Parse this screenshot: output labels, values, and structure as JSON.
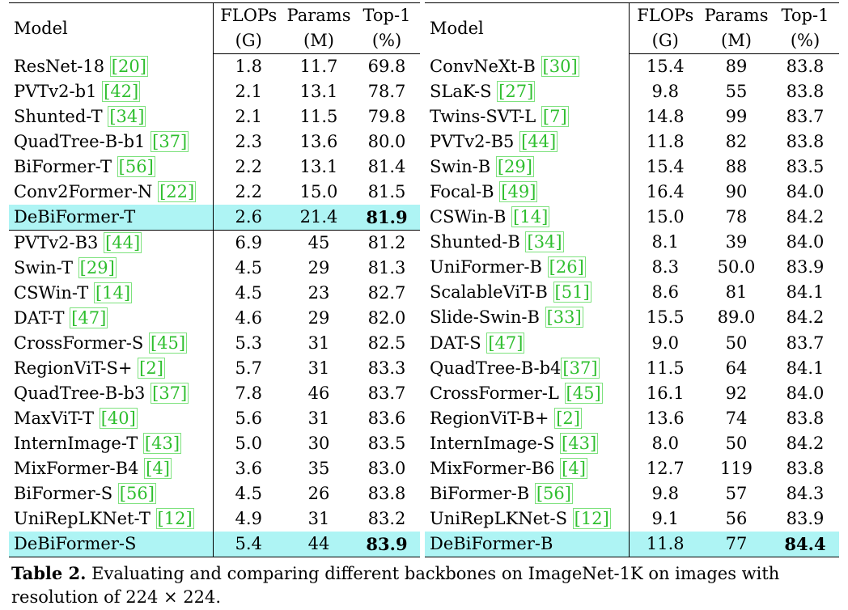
{
  "headers": {
    "model": "Model",
    "flops": "FLOPs",
    "flops_unit": "(G)",
    "params": "Params",
    "params_unit": "(M)",
    "top1": "Top-1",
    "top1_unit": "(%)"
  },
  "left_rows": [
    {
      "name": "ResNet-18 ",
      "ref": "20",
      "flops": "1.8",
      "params": "11.7",
      "top1": "69.8"
    },
    {
      "name": "PVTv2-b1 ",
      "ref": "42",
      "flops": "2.1",
      "params": "13.1",
      "top1": "78.7"
    },
    {
      "name": "Shunted-T ",
      "ref": "34",
      "flops": "2.1",
      "params": "11.5",
      "top1": "79.8"
    },
    {
      "name": "QuadTree-B-b1 ",
      "ref": "37",
      "flops": "2.3",
      "params": "13.6",
      "top1": "80.0"
    },
    {
      "name": "BiFormer-T ",
      "ref": "56",
      "flops": "2.2",
      "params": "13.1",
      "top1": "81.4"
    },
    {
      "name": "Conv2Former-N ",
      "ref": "22",
      "flops": "2.2",
      "params": "15.0",
      "top1": "81.5"
    },
    {
      "name": "DeBiFormer-T",
      "ref": "",
      "flops": "2.6",
      "params": "21.4",
      "top1": "81.9",
      "highlight": true
    },
    {
      "name": "PVTv2-B3 ",
      "ref": "44",
      "flops": "6.9",
      "params": "45",
      "top1": "81.2",
      "sep": true
    },
    {
      "name": "Swin-T ",
      "ref": "29",
      "flops": "4.5",
      "params": "29",
      "top1": "81.3"
    },
    {
      "name": "CSWin-T ",
      "ref": "14",
      "flops": "4.5",
      "params": "23",
      "top1": "82.7"
    },
    {
      "name": "DAT-T ",
      "ref": "47",
      "flops": "4.6",
      "params": "29",
      "top1": "82.0"
    },
    {
      "name": "CrossFormer-S ",
      "ref": "45",
      "flops": "5.3",
      "params": "31",
      "top1": "82.5"
    },
    {
      "name": "RegionViT-S+ ",
      "ref": "2",
      "flops": "5.7",
      "params": "31",
      "top1": "83.3"
    },
    {
      "name": "QuadTree-B-b3 ",
      "ref": "37",
      "flops": "7.8",
      "params": "46",
      "top1": "83.7"
    },
    {
      "name": "MaxViT-T ",
      "ref": "40",
      "flops": "5.6",
      "params": "31",
      "top1": "83.6"
    },
    {
      "name": "InternImage-T ",
      "ref": "43",
      "flops": "5.0",
      "params": "30",
      "top1": "83.5"
    },
    {
      "name": "MixFormer-B4 ",
      "ref": "4",
      "flops": "3.6",
      "params": "35",
      "top1": "83.0"
    },
    {
      "name": "BiFormer-S ",
      "ref": "56",
      "flops": "4.5",
      "params": "26",
      "top1": "83.8"
    },
    {
      "name": "UniRepLKNet-T ",
      "ref": "12",
      "flops": "4.9",
      "params": "31",
      "top1": "83.2"
    },
    {
      "name": "DeBiFormer-S",
      "ref": "",
      "flops": "5.4",
      "params": "44",
      "top1": "83.9",
      "highlight": true
    }
  ],
  "right_rows": [
    {
      "name": "ConvNeXt-B ",
      "ref": "30",
      "flops": "15.4",
      "params": "89",
      "top1": "83.8"
    },
    {
      "name": "SLaK-S ",
      "ref": "27",
      "flops": "9.8",
      "params": "55",
      "top1": "83.8"
    },
    {
      "name": "Twins-SVT-L ",
      "ref": "7",
      "flops": "14.8",
      "params": "99",
      "top1": "83.7"
    },
    {
      "name": "PVTv2-B5 ",
      "ref": "44",
      "flops": "11.8",
      "params": "82",
      "top1": "83.8"
    },
    {
      "name": "Swin-B ",
      "ref": "29",
      "flops": "15.4",
      "params": "88",
      "top1": "83.5"
    },
    {
      "name": "Focal-B ",
      "ref": "49",
      "flops": "16.4",
      "params": "90",
      "top1": "84.0"
    },
    {
      "name": "CSWin-B ",
      "ref": "14",
      "flops": "15.0",
      "params": "78",
      "top1": "84.2"
    },
    {
      "name": "Shunted-B ",
      "ref": "34",
      "flops": "8.1",
      "params": "39",
      "top1": "84.0"
    },
    {
      "name": "UniFormer-B ",
      "ref": "26",
      "flops": "8.3",
      "params": "50.0",
      "top1": "83.9"
    },
    {
      "name": "ScalableViT-B ",
      "ref": "51",
      "flops": "8.6",
      "params": "81",
      "top1": "84.1"
    },
    {
      "name": "Slide-Swin-B ",
      "ref": "33",
      "flops": "15.5",
      "params": "89.0",
      "top1": "84.2"
    },
    {
      "name": "DAT-S ",
      "ref": "47",
      "flops": "9.0",
      "params": "50",
      "top1": "83.7"
    },
    {
      "name": "QuadTree-B-b4",
      "ref": "37",
      "flops": "11.5",
      "params": "64",
      "top1": "84.1"
    },
    {
      "name": "CrossFormer-L ",
      "ref": "45",
      "flops": "16.1",
      "params": "92",
      "top1": "84.0"
    },
    {
      "name": "RegionViT-B+ ",
      "ref": "2",
      "flops": "13.6",
      "params": "74",
      "top1": "83.8"
    },
    {
      "name": "InternImage-S ",
      "ref": "43",
      "flops": "8.0",
      "params": "50",
      "top1": "84.2"
    },
    {
      "name": "MixFormer-B6 ",
      "ref": "4",
      "flops": "12.7",
      "params": "119",
      "top1": "83.8"
    },
    {
      "name": "BiFormer-B ",
      "ref": "56",
      "flops": "9.8",
      "params": "57",
      "top1": "84.3"
    },
    {
      "name": "UniRepLKNet-S ",
      "ref": "12",
      "flops": "9.1",
      "params": "56",
      "top1": "83.9"
    },
    {
      "name": "DeBiFormer-B",
      "ref": "",
      "flops": "11.8",
      "params": "77",
      "top1": "84.4",
      "highlight": true
    }
  ],
  "caption": {
    "label": "Table 2.",
    "text": " Evaluating and comparing different backbones on ImageNet-1K on images with resolution of 224 × 224."
  }
}
